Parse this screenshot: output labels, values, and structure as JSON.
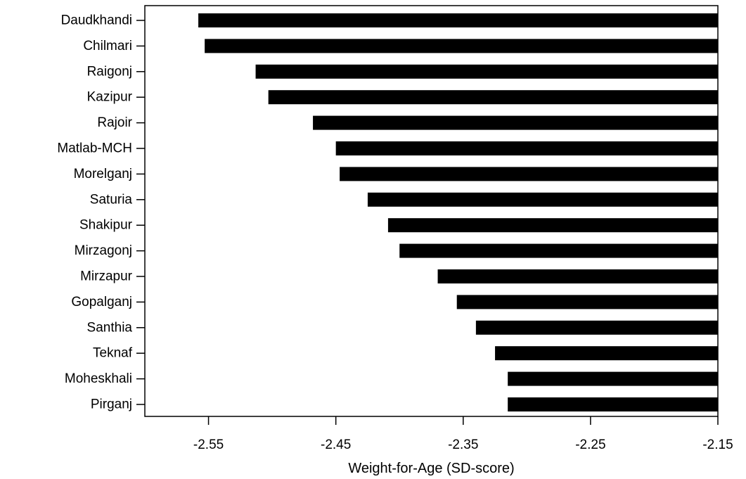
{
  "chart_data": {
    "type": "bar",
    "orientation": "horizontal",
    "title": "",
    "xlabel": "Weight-for-Age (SD-score)",
    "ylabel": "",
    "xlim": [
      -2.6,
      -2.15
    ],
    "xticks": [
      -2.55,
      -2.45,
      -2.35,
      -2.25,
      -2.15
    ],
    "xtick_labels": [
      "-2.55",
      "-2.45",
      "-2.35",
      "-2.25",
      "-2.15"
    ],
    "bar_baseline": -2.15,
    "bar_color": "#000000",
    "grid": false,
    "legend": "none",
    "categories": [
      "Daudkhandi",
      "Chilmari",
      "Raigonj",
      "Kazipur",
      "Rajoir",
      "Matlab-MCH",
      "Morelganj",
      "Saturia",
      "Shakipur",
      "Mirzagonj",
      "Mirzapur",
      "Gopalganj",
      "Santhia",
      "Teknaf",
      "Moheskhali",
      "Pirganj"
    ],
    "values": [
      -2.558,
      -2.553,
      -2.513,
      -2.503,
      -2.468,
      -2.45,
      -2.447,
      -2.425,
      -2.409,
      -2.4,
      -2.37,
      -2.355,
      -2.34,
      -2.325,
      -2.315,
      -2.315
    ]
  }
}
